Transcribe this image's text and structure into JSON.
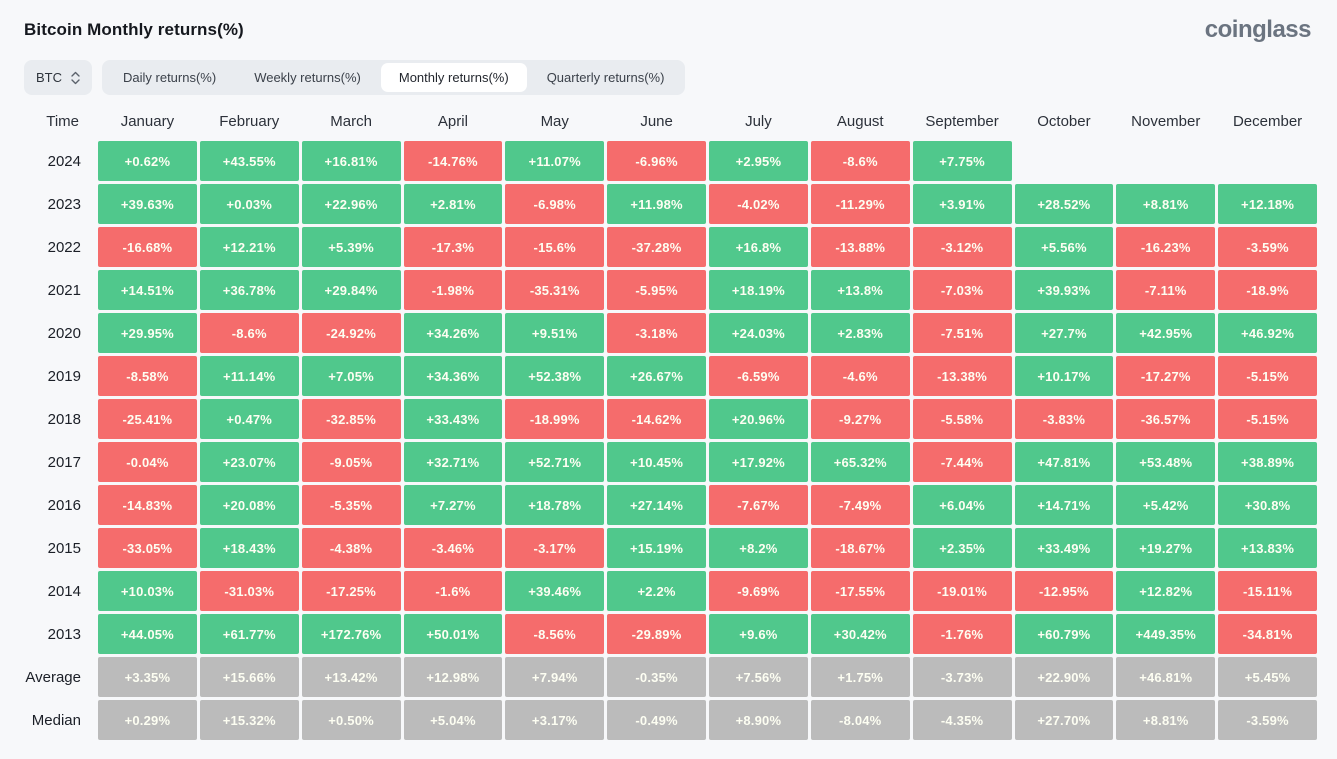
{
  "page": {
    "title": "Bitcoin Monthly returns(%)",
    "brand": "coinglass"
  },
  "controls": {
    "symbol": "BTC",
    "tabs": [
      {
        "label": "Daily returns(%)",
        "active": false
      },
      {
        "label": "Weekly returns(%)",
        "active": false
      },
      {
        "label": "Monthly returns(%)",
        "active": true
      },
      {
        "label": "Quarterly returns(%)",
        "active": false
      }
    ]
  },
  "chart_data": {
    "type": "table",
    "title": "Bitcoin Monthly returns(%)",
    "columns": [
      "Time",
      "January",
      "February",
      "March",
      "April",
      "May",
      "June",
      "July",
      "August",
      "September",
      "October",
      "November",
      "December"
    ],
    "colors": {
      "positive": "#50c88c",
      "negative": "#f56c6c",
      "neutral": "#bbbbbb"
    },
    "rows": [
      {
        "label": "2024",
        "style": "signed",
        "values": [
          "+0.62%",
          "+43.55%",
          "+16.81%",
          "-14.76%",
          "+11.07%",
          "-6.96%",
          "+2.95%",
          "-8.6%",
          "+7.75%",
          null,
          null,
          null
        ]
      },
      {
        "label": "2023",
        "style": "signed",
        "values": [
          "+39.63%",
          "+0.03%",
          "+22.96%",
          "+2.81%",
          "-6.98%",
          "+11.98%",
          "-4.02%",
          "-11.29%",
          "+3.91%",
          "+28.52%",
          "+8.81%",
          "+12.18%"
        ]
      },
      {
        "label": "2022",
        "style": "signed",
        "values": [
          "-16.68%",
          "+12.21%",
          "+5.39%",
          "-17.3%",
          "-15.6%",
          "-37.28%",
          "+16.8%",
          "-13.88%",
          "-3.12%",
          "+5.56%",
          "-16.23%",
          "-3.59%"
        ]
      },
      {
        "label": "2021",
        "style": "signed",
        "values": [
          "+14.51%",
          "+36.78%",
          "+29.84%",
          "-1.98%",
          "-35.31%",
          "-5.95%",
          "+18.19%",
          "+13.8%",
          "-7.03%",
          "+39.93%",
          "-7.11%",
          "-18.9%"
        ]
      },
      {
        "label": "2020",
        "style": "signed",
        "values": [
          "+29.95%",
          "-8.6%",
          "-24.92%",
          "+34.26%",
          "+9.51%",
          "-3.18%",
          "+24.03%",
          "+2.83%",
          "-7.51%",
          "+27.7%",
          "+42.95%",
          "+46.92%"
        ]
      },
      {
        "label": "2019",
        "style": "signed",
        "values": [
          "-8.58%",
          "+11.14%",
          "+7.05%",
          "+34.36%",
          "+52.38%",
          "+26.67%",
          "-6.59%",
          "-4.6%",
          "-13.38%",
          "+10.17%",
          "-17.27%",
          "-5.15%"
        ]
      },
      {
        "label": "2018",
        "style": "signed",
        "values": [
          "-25.41%",
          "+0.47%",
          "-32.85%",
          "+33.43%",
          "-18.99%",
          "-14.62%",
          "+20.96%",
          "-9.27%",
          "-5.58%",
          "-3.83%",
          "-36.57%",
          "-5.15%"
        ]
      },
      {
        "label": "2017",
        "style": "signed",
        "values": [
          "-0.04%",
          "+23.07%",
          "-9.05%",
          "+32.71%",
          "+52.71%",
          "+10.45%",
          "+17.92%",
          "+65.32%",
          "-7.44%",
          "+47.81%",
          "+53.48%",
          "+38.89%"
        ]
      },
      {
        "label": "2016",
        "style": "signed",
        "values": [
          "-14.83%",
          "+20.08%",
          "-5.35%",
          "+7.27%",
          "+18.78%",
          "+27.14%",
          "-7.67%",
          "-7.49%",
          "+6.04%",
          "+14.71%",
          "+5.42%",
          "+30.8%"
        ]
      },
      {
        "label": "2015",
        "style": "signed",
        "values": [
          "-33.05%",
          "+18.43%",
          "-4.38%",
          "-3.46%",
          "-3.17%",
          "+15.19%",
          "+8.2%",
          "-18.67%",
          "+2.35%",
          "+33.49%",
          "+19.27%",
          "+13.83%"
        ]
      },
      {
        "label": "2014",
        "style": "signed",
        "values": [
          "+10.03%",
          "-31.03%",
          "-17.25%",
          "-1.6%",
          "+39.46%",
          "+2.2%",
          "-9.69%",
          "-17.55%",
          "-19.01%",
          "-12.95%",
          "+12.82%",
          "-15.11%"
        ]
      },
      {
        "label": "2013",
        "style": "signed",
        "values": [
          "+44.05%",
          "+61.77%",
          "+172.76%",
          "+50.01%",
          "-8.56%",
          "-29.89%",
          "+9.6%",
          "+30.42%",
          "-1.76%",
          "+60.79%",
          "+449.35%",
          "-34.81%"
        ]
      },
      {
        "label": "Average",
        "style": "neutral",
        "values": [
          "+3.35%",
          "+15.66%",
          "+13.42%",
          "+12.98%",
          "+7.94%",
          "-0.35%",
          "+7.56%",
          "+1.75%",
          "-3.73%",
          "+22.90%",
          "+46.81%",
          "+5.45%"
        ]
      },
      {
        "label": "Median",
        "style": "neutral",
        "values": [
          "+0.29%",
          "+15.32%",
          "+0.50%",
          "+5.04%",
          "+3.17%",
          "-0.49%",
          "+8.90%",
          "-8.04%",
          "-4.35%",
          "+27.70%",
          "+8.81%",
          "-3.59%"
        ]
      }
    ]
  }
}
